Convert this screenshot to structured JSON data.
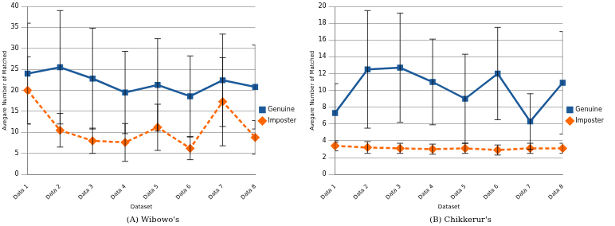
{
  "chart_data": [
    {
      "type": "line",
      "title": "(A) Wibowo's",
      "x_label": "Dataset",
      "y_label": "Avegare Number of Matched",
      "categories": [
        "Data 1",
        "Data 2",
        "Data 3",
        "Data 4",
        "Data 5",
        "Data 6",
        "Data 7",
        "Data 8"
      ],
      "series": [
        {
          "name": "Genuine",
          "color": "#1c5a99",
          "marker": "square",
          "line_style": "solid",
          "values": [
            24,
            25.5,
            22.8,
            19.5,
            21.3,
            18.6,
            22.4,
            20.8
          ],
          "errors": [
            12,
            13.5,
            12,
            9.8,
            11,
            9.6,
            11,
            10
          ]
        },
        {
          "name": "Imposter",
          "color": "#ff6600",
          "marker": "diamond",
          "line_style": "dashed",
          "values": [
            20,
            10.5,
            8,
            7.6,
            11.2,
            6.2,
            17.3,
            8.8
          ],
          "errors": [
            8,
            4,
            3,
            4.5,
            5.5,
            2.7,
            10.5,
            4
          ]
        }
      ],
      "ylim": [
        0,
        40
      ],
      "yticks": [
        0,
        5,
        10,
        15,
        20,
        25,
        30,
        35,
        40
      ],
      "grid": true,
      "legend": "right"
    },
    {
      "type": "line",
      "title": "(B) Chikkerur's",
      "x_label": "Dataset",
      "y_label": "Avegare Number of Matched",
      "categories": [
        "Data 1",
        "Data 2",
        "Data 3",
        "Data 4",
        "Data 5",
        "Data 6",
        "Data 7",
        "Data 8"
      ],
      "series": [
        {
          "name": "Genuine",
          "color": "#1c5a99",
          "marker": "square",
          "line_style": "solid",
          "values": [
            7.3,
            12.5,
            12.7,
            11,
            9,
            12,
            6.3,
            10.9
          ],
          "errors": [
            3.5,
            7,
            6.5,
            5.1,
            5.3,
            5.5,
            3.3,
            6.1
          ]
        },
        {
          "name": "Imposter",
          "color": "#ff6600",
          "marker": "diamond",
          "line_style": "dashed",
          "values": [
            3.4,
            3.2,
            3.1,
            3.0,
            3.1,
            2.9,
            3.1,
            3.1
          ],
          "errors": [
            0.6,
            0.7,
            0.6,
            0.6,
            0.6,
            0.6,
            0.6,
            0.6
          ]
        }
      ],
      "ylim": [
        0,
        20
      ],
      "yticks": [
        0,
        2,
        4,
        6,
        8,
        10,
        12,
        14,
        16,
        18,
        20
      ],
      "grid": true,
      "legend": "right"
    }
  ]
}
